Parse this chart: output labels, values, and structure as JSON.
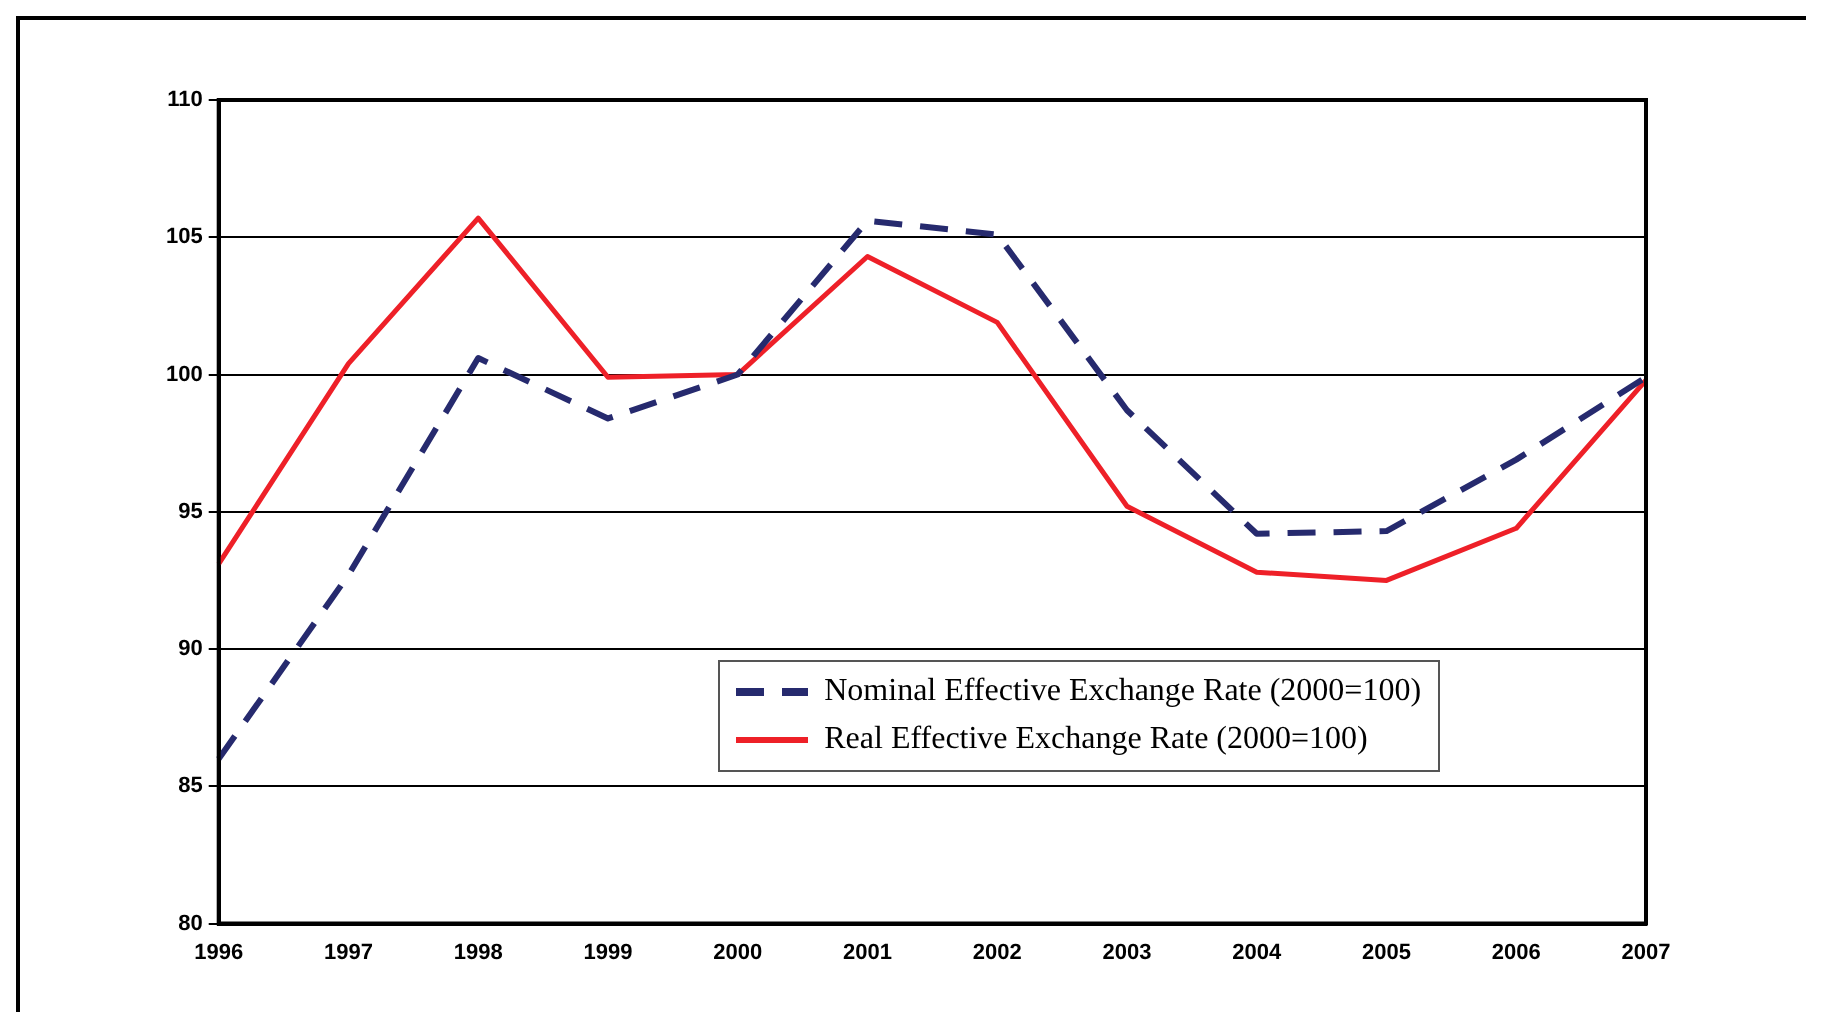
{
  "chart_data": {
    "type": "line",
    "categories": [
      "1996",
      "1997",
      "1998",
      "1999",
      "2000",
      "2001",
      "2002",
      "2003",
      "2004",
      "2005",
      "2006",
      "2007"
    ],
    "series": [
      {
        "name": "Nominal Effective Exchange Rate (2000=100)",
        "color": "#262a6e",
        "line_style": "dashed",
        "values": [
          86,
          92.7,
          100.6,
          98.4,
          100,
          105.6,
          105.1,
          98.7,
          94.2,
          94.3,
          96.9,
          99.9
        ]
      },
      {
        "name": "Real Effective Exchange Rate (2000=100)",
        "color": "#ee2028",
        "line_style": "solid",
        "values": [
          93.1,
          100.4,
          105.7,
          99.9,
          100,
          104.3,
          101.9,
          95.2,
          92.8,
          92.5,
          94.4,
          99.8
        ]
      }
    ],
    "ylim": [
      80,
      110
    ],
    "yticks": [
      80,
      85,
      90,
      95,
      100,
      105,
      110
    ],
    "grid": "y",
    "legend": "bottom right",
    "marker": "none"
  }
}
